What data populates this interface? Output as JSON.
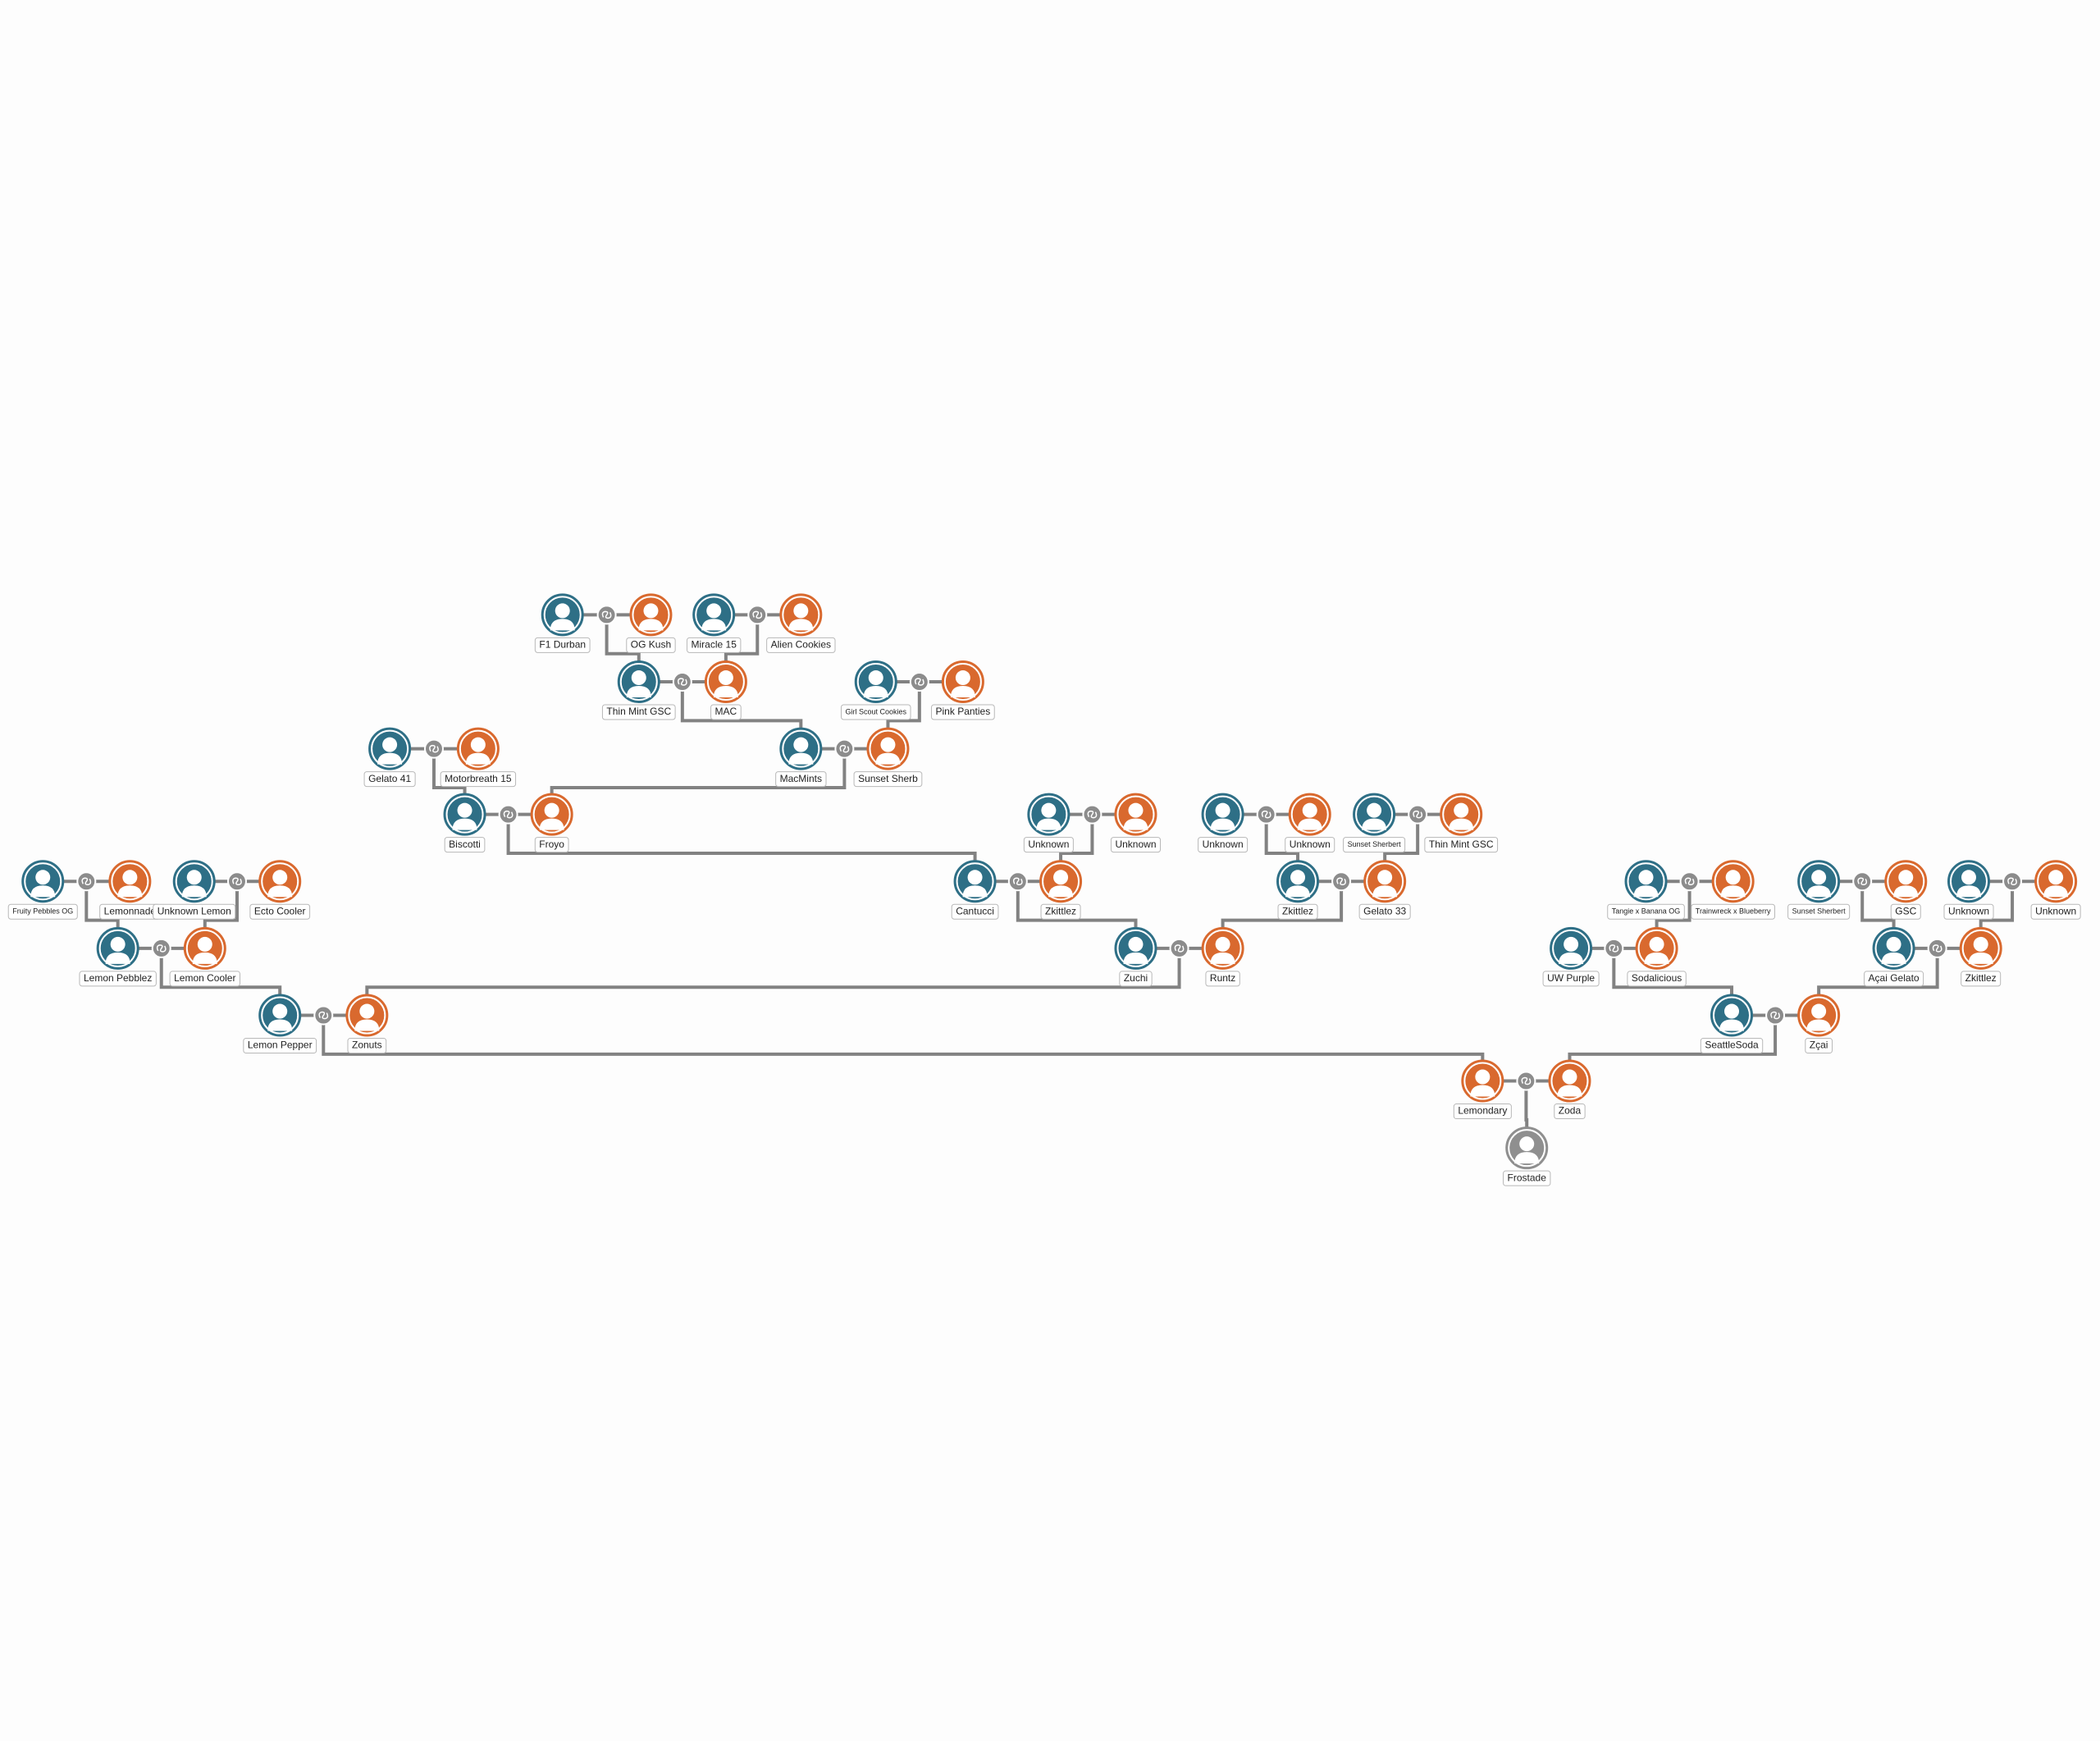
{
  "nodes": [
    {
      "label": "F1 Durban",
      "color": "#2e6f86"
    },
    {
      "label": "OG Kush",
      "color": "#d9692e"
    },
    {
      "label": "Miracle 15",
      "color": "#2e6f86"
    },
    {
      "label": "Alien Cookies",
      "color": "#d9692e"
    },
    {
      "label": "Thin Mint GSC",
      "color": "#2e6f86"
    },
    {
      "label": "MAC",
      "color": "#d9692e"
    },
    {
      "label": "Girl Scout Cookies",
      "color": "#2e6f86"
    },
    {
      "label": "Pink Panties",
      "color": "#d9692e"
    },
    {
      "label": "Gelato 41",
      "color": "#2e6f86"
    },
    {
      "label": "Motorbreath 15",
      "color": "#d9692e"
    },
    {
      "label": "MacMints",
      "color": "#2e6f86"
    },
    {
      "label": "Sunset Sherb",
      "color": "#d9692e"
    },
    {
      "label": "Biscotti",
      "color": "#2e6f86"
    },
    {
      "label": "Froyo",
      "color": "#d9692e"
    },
    {
      "label": "Unknown",
      "color": "#2e6f86"
    },
    {
      "label": "Unknown",
      "color": "#d9692e"
    },
    {
      "label": "Unknown",
      "color": "#2e6f86"
    },
    {
      "label": "Unknown",
      "color": "#d9692e"
    },
    {
      "label": "Sunset Sherbert",
      "color": "#2e6f86"
    },
    {
      "label": "Thin Mint GSC",
      "color": "#d9692e"
    },
    {
      "label": "Fruity Pebbles OG",
      "color": "#2e6f86"
    },
    {
      "label": "Lemonnade",
      "color": "#d9692e"
    },
    {
      "label": "Unknown Lemon",
      "color": "#2e6f86"
    },
    {
      "label": "Ecto Cooler",
      "color": "#d9692e"
    },
    {
      "label": "Cantucci",
      "color": "#2e6f86"
    },
    {
      "label": "Zkittlez",
      "color": "#d9692e"
    },
    {
      "label": "Zkittlez",
      "color": "#2e6f86"
    },
    {
      "label": "Gelato 33",
      "color": "#d9692e"
    },
    {
      "label": "Tangie x Banana OG",
      "color": "#2e6f86"
    },
    {
      "label": "Trainwreck x Blueberry",
      "color": "#d9692e"
    },
    {
      "label": "Sunset Sherbert",
      "color": "#2e6f86"
    },
    {
      "label": "GSC",
      "color": "#d9692e"
    },
    {
      "label": "Unknown",
      "color": "#2e6f86"
    },
    {
      "label": "Unknown",
      "color": "#d9692e"
    },
    {
      "label": "Lemon Pebblez",
      "color": "#2e6f86"
    },
    {
      "label": "Lemon Cooler",
      "color": "#d9692e"
    },
    {
      "label": "Zuchi",
      "color": "#2e6f86"
    },
    {
      "label": "Runtz",
      "color": "#d9692e"
    },
    {
      "label": "UW Purple",
      "color": "#2e6f86"
    },
    {
      "label": "Sodalicious",
      "color": "#d9692e"
    },
    {
      "label": "Açai Gelato",
      "color": "#2e6f86"
    },
    {
      "label": "Zkittlez",
      "color": "#d9692e"
    },
    {
      "label": "Lemon Pepper",
      "color": "#2e6f86"
    },
    {
      "label": "Zonuts",
      "color": "#d9692e"
    },
    {
      "label": "SeattleSoda",
      "color": "#2e6f86"
    },
    {
      "label": "Zçai",
      "color": "#d9692e"
    },
    {
      "label": "Lemondary",
      "color": "#d9692e"
    },
    {
      "label": "Zoda",
      "color": "#d9692e"
    },
    {
      "label": "Frostade",
      "color": "#8f8f8f"
    }
  ]
}
